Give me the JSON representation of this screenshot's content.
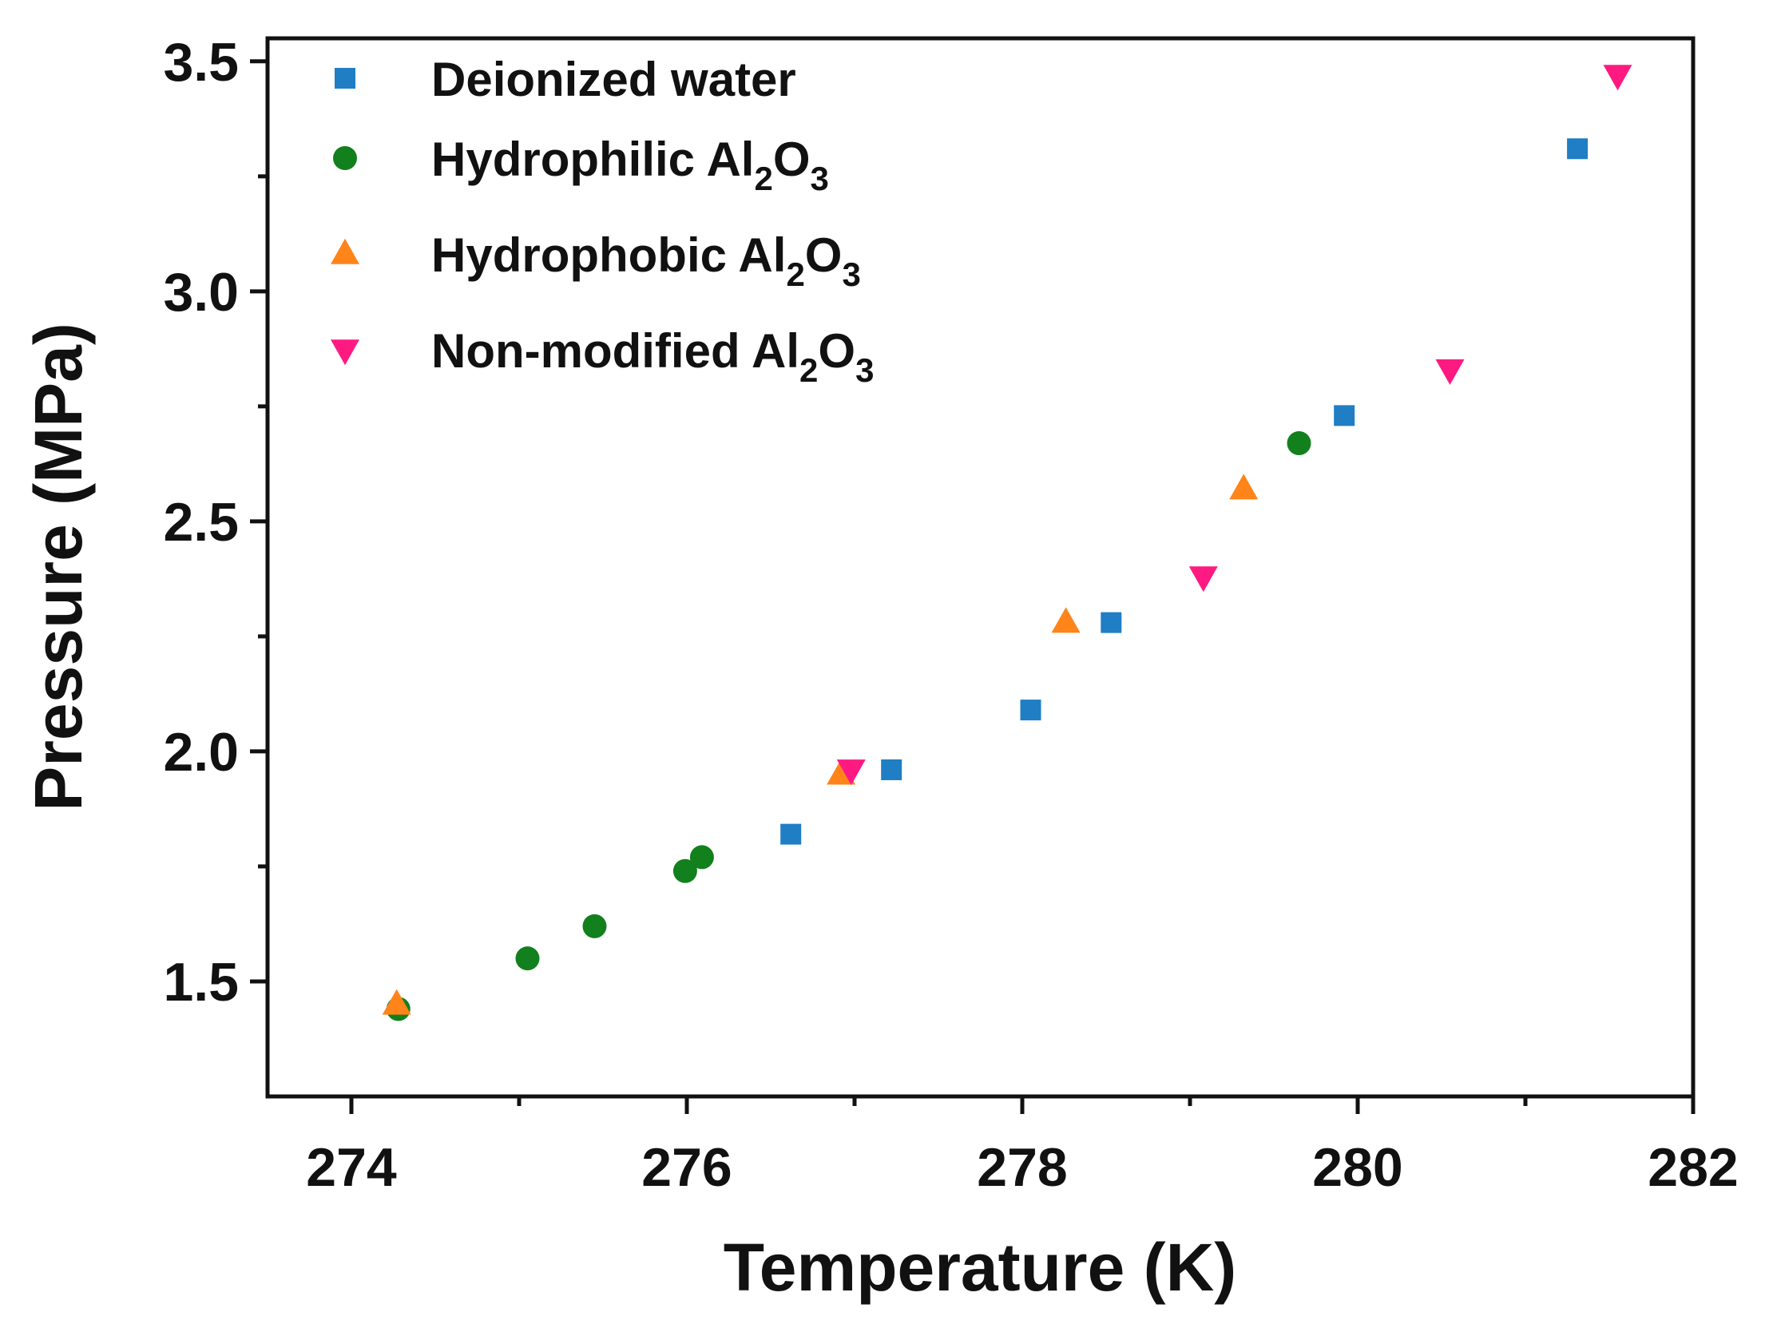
{
  "chart_data": {
    "type": "scatter",
    "title": "",
    "xlabel": "Temperature (K)",
    "ylabel": "Pressure (MPa)",
    "xlim": [
      273.5,
      282
    ],
    "ylim": [
      1.25,
      3.55
    ],
    "x_major_ticks": [
      274,
      276,
      278,
      280,
      282
    ],
    "x_tick_labels": [
      "274",
      "276",
      "278",
      "280",
      "282"
    ],
    "x_minor_ticks": [
      275,
      277,
      279,
      281
    ],
    "y_major_ticks": [
      1.5,
      2.0,
      2.5,
      3.0,
      3.5
    ],
    "y_tick_labels": [
      "1.5",
      "2.0",
      "2.5",
      "3.0",
      "3.5"
    ],
    "y_minor_ticks": [
      1.75,
      2.25,
      2.75,
      3.25
    ],
    "grid": false,
    "legend_position": "top-left",
    "series": [
      {
        "name": "Deionized water",
        "marker": "square",
        "color": "#1f7ec4",
        "points": [
          [
            276.62,
            1.82
          ],
          [
            277.22,
            1.96
          ],
          [
            278.05,
            2.09
          ],
          [
            278.53,
            2.28
          ],
          [
            279.92,
            2.73
          ],
          [
            281.31,
            3.31
          ]
        ]
      },
      {
        "name": "Hydrophilic Al2O3",
        "legend_parts": [
          "Hydrophilic Al",
          "2",
          "O",
          "3"
        ],
        "marker": "circle",
        "color": "#12801c",
        "points": [
          [
            274.28,
            1.44
          ],
          [
            275.05,
            1.55
          ],
          [
            275.45,
            1.62
          ],
          [
            275.99,
            1.74
          ],
          [
            276.09,
            1.77
          ],
          [
            279.65,
            2.67
          ]
        ]
      },
      {
        "name": "Hydrophobic Al2O3",
        "legend_parts": [
          "Hydrophobic Al",
          "2",
          "O",
          "3"
        ],
        "marker": "triangle-up",
        "color": "#ff8419",
        "points": [
          [
            274.27,
            1.45
          ],
          [
            276.92,
            1.95
          ],
          [
            278.26,
            2.28
          ],
          [
            279.32,
            2.57
          ]
        ]
      },
      {
        "name": "Non-modified Al2O3",
        "legend_parts": [
          "Non-modified Al",
          "2",
          "O",
          "3"
        ],
        "marker": "triangle-down",
        "color": "#ff1a82",
        "points": [
          [
            276.98,
            1.96
          ],
          [
            279.08,
            2.38
          ],
          [
            280.55,
            2.83
          ],
          [
            281.55,
            3.47
          ]
        ]
      }
    ]
  }
}
